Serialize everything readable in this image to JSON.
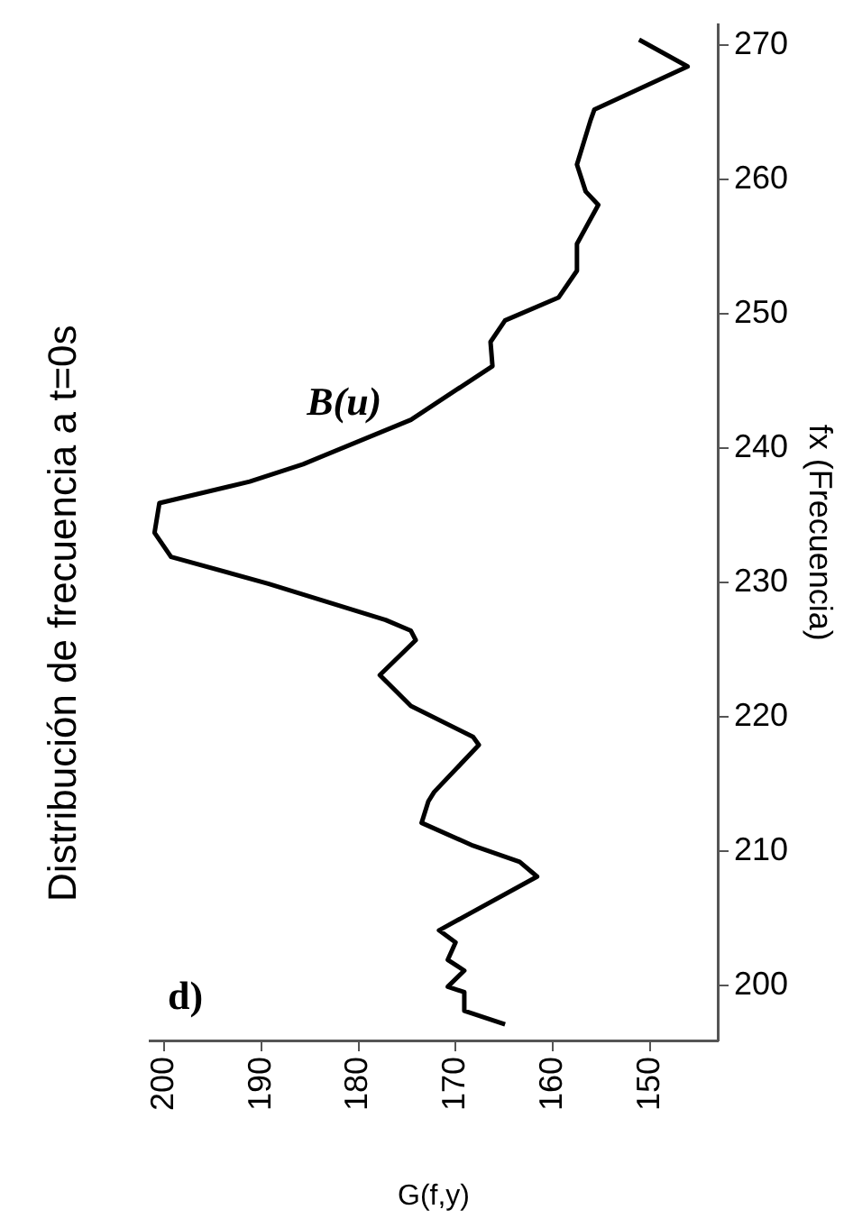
{
  "chart_data": {
    "type": "line",
    "title": "Distribución de frecuencia a t=0s",
    "xlabel": "G(f,y)",
    "ylabel": "fx (Frecuencia)",
    "series": [
      {
        "color": "#000000",
        "x": [
          164.9,
          169.1,
          169.1,
          170.8,
          169.1,
          170.8,
          170.0,
          171.7,
          161.6,
          163.4,
          168.2,
          173.5,
          172.8,
          172.2,
          167.6,
          168.2,
          174.6,
          177.8,
          174.1,
          174.6,
          177.2,
          189.3,
          199.3,
          201,
          200.5,
          191.2,
          185.7,
          174.6,
          166.2,
          166.4,
          164.9,
          159.4,
          157.5,
          157.5,
          155.3,
          156.6,
          157.5,
          156.1,
          155.7,
          146.1,
          151.1
        ],
        "values": [
          197.1,
          198.1,
          199.5,
          199.9,
          201.1,
          201.9,
          203.2,
          204.1,
          208.1,
          209.2,
          210.4,
          212.1,
          213.7,
          214.4,
          217.9,
          218.5,
          220.8,
          223.1,
          225.7,
          226.4,
          227.2,
          229.9,
          231.9,
          233.7,
          235.9,
          237.5,
          238.8,
          242.1,
          246.1,
          247.9,
          249.5,
          251.2,
          253.2,
          255.2,
          258.1,
          259.1,
          261.1,
          264.4,
          265.2,
          268.4,
          270.4
        ]
      }
    ],
    "xlim": [
      201.5,
      143
    ],
    "xticks": [
      200,
      190,
      180,
      170,
      160,
      150
    ],
    "ylim": [
      195.9,
      271.5
    ],
    "yticks": [
      200,
      210,
      220,
      230,
      240,
      250,
      260,
      270
    ],
    "annotations": [
      "d)",
      {
        "text": "B(u)",
        "x": 185.7,
        "y": 238.8
      }
    ],
    "grid": false,
    "legend": false,
    "marker": "none",
    "line_style": "solid"
  }
}
